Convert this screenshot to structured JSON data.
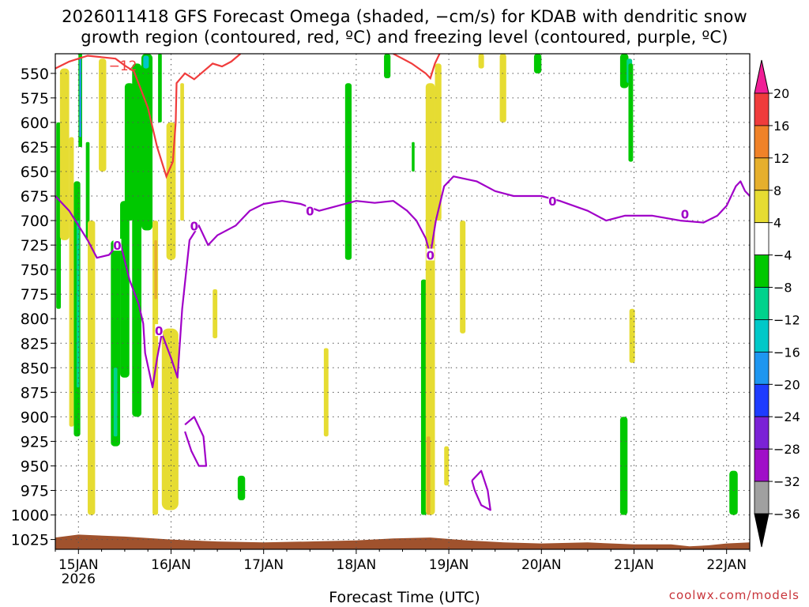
{
  "title_line1": "2026011418 GFS Forecast Omega (shaded, −cm/s) for KDAB with dendritic snow",
  "title_line2": "growth region (contoured, red, ºC) and freezing level (contoured, purple, ºC)",
  "credit": "coolwx.com/models",
  "chart_data": {
    "type": "heatmap",
    "xlabel": "Forecast Time (UTC)",
    "x_ticks": [
      "15JAN",
      "16JAN",
      "17JAN",
      "18JAN",
      "19JAN",
      "20JAN",
      "21JAN",
      "22JAN"
    ],
    "x_year_label": "2026",
    "x_range_days": [
      14.75,
      22.25
    ],
    "y_ticks": [
      550,
      575,
      600,
      625,
      650,
      675,
      700,
      725,
      750,
      775,
      800,
      825,
      850,
      875,
      900,
      925,
      950,
      975,
      1000,
      1025
    ],
    "ylim": [
      530,
      1035
    ],
    "grid": true,
    "colorbar": {
      "labels": [
        "20",
        "16",
        "12",
        "8",
        "4",
        "−4",
        "−8",
        "−12",
        "−16",
        "−20",
        "−24",
        "−28",
        "−32",
        "−36"
      ],
      "bands": [
        {
          "lo": 16,
          "hi": 20,
          "color": "#f03c3c"
        },
        {
          "lo": 12,
          "hi": 16,
          "color": "#f08228"
        },
        {
          "lo": 8,
          "hi": 12,
          "color": "#e6af2d"
        },
        {
          "lo": 4,
          "hi": 8,
          "color": "#e6dc32"
        },
        {
          "lo": -4,
          "hi": 4,
          "color": "#ffffff"
        },
        {
          "lo": -8,
          "hi": -4,
          "color": "#00c800"
        },
        {
          "lo": -12,
          "hi": -8,
          "color": "#00d28c"
        },
        {
          "lo": -16,
          "hi": -12,
          "color": "#00c8c8"
        },
        {
          "lo": -20,
          "hi": -16,
          "color": "#1e96f0"
        },
        {
          "lo": -24,
          "hi": -20,
          "color": "#1e3cff"
        },
        {
          "lo": -28,
          "hi": -24,
          "color": "#7b22d6"
        },
        {
          "lo": -32,
          "hi": -28,
          "color": "#a00fc8"
        },
        {
          "lo": -36,
          "hi": -32,
          "color": "#a0a0a0"
        }
      ],
      "top_arrow_color": "#f01e96",
      "bottom_arrow_color": "#000000"
    },
    "freezing_level": {
      "name": "0",
      "color": "#a000c8",
      "points": [
        [
          14.75,
          675
        ],
        [
          14.9,
          690
        ],
        [
          15.0,
          705
        ],
        [
          15.1,
          720
        ],
        [
          15.2,
          738
        ],
        [
          15.33,
          735
        ],
        [
          15.45,
          722
        ],
        [
          15.55,
          760
        ],
        [
          15.65,
          785
        ],
        [
          15.7,
          805
        ],
        [
          15.72,
          835
        ],
        [
          15.8,
          870
        ],
        [
          15.85,
          840
        ],
        [
          15.9,
          815
        ],
        [
          16.0,
          840
        ],
        [
          16.07,
          860
        ],
        [
          16.12,
          790
        ],
        [
          16.2,
          720
        ],
        [
          16.3,
          705
        ],
        [
          16.4,
          725
        ],
        [
          16.5,
          715
        ],
        [
          16.7,
          705
        ],
        [
          16.85,
          690
        ],
        [
          17.0,
          683
        ],
        [
          17.2,
          680
        ],
        [
          17.4,
          683
        ],
        [
          17.6,
          690
        ],
        [
          17.8,
          685
        ],
        [
          18.0,
          680
        ],
        [
          18.2,
          682
        ],
        [
          18.4,
          680
        ],
        [
          18.55,
          690
        ],
        [
          18.65,
          700
        ],
        [
          18.75,
          718
        ],
        [
          18.8,
          735
        ],
        [
          18.86,
          700
        ],
        [
          18.95,
          665
        ],
        [
          19.05,
          655
        ],
        [
          19.3,
          660
        ],
        [
          19.5,
          670
        ],
        [
          19.7,
          675
        ],
        [
          20.0,
          675
        ],
        [
          20.2,
          680
        ],
        [
          20.5,
          690
        ],
        [
          20.7,
          700
        ],
        [
          20.9,
          695
        ],
        [
          21.2,
          695
        ],
        [
          21.5,
          700
        ],
        [
          21.75,
          702
        ],
        [
          21.9,
          695
        ],
        [
          22.0,
          685
        ],
        [
          22.1,
          665
        ],
        [
          22.15,
          660
        ],
        [
          22.2,
          670
        ],
        [
          22.25,
          675
        ]
      ],
      "labels": [
        {
          "text": "0",
          "x": 15.42,
          "y": 725
        },
        {
          "text": "0",
          "x": 15.87,
          "y": 812
        },
        {
          "text": "0",
          "x": 16.25,
          "y": 705
        },
        {
          "text": "0",
          "x": 17.5,
          "y": 690
        },
        {
          "text": "0",
          "x": 18.8,
          "y": 735
        },
        {
          "text": "0",
          "x": 20.12,
          "y": 680
        },
        {
          "text": "0",
          "x": 21.55,
          "y": 693
        }
      ],
      "loops": [
        [
          [
            16.15,
            908
          ],
          [
            16.25,
            900
          ],
          [
            16.35,
            920
          ],
          [
            16.38,
            950
          ],
          [
            16.3,
            950
          ],
          [
            16.22,
            935
          ],
          [
            16.15,
            915
          ]
        ],
        [
          [
            19.25,
            965
          ],
          [
            19.35,
            955
          ],
          [
            19.42,
            975
          ],
          [
            19.45,
            995
          ],
          [
            19.35,
            990
          ],
          [
            19.28,
            975
          ],
          [
            19.25,
            965
          ]
        ]
      ]
    },
    "dgz_contour": {
      "name": "−12",
      "color": "#f03c3c",
      "label": {
        "text": "−12",
        "x": 15.48,
        "y": 542
      },
      "lines": [
        [
          [
            14.75,
            545
          ],
          [
            14.9,
            538
          ],
          [
            15.1,
            532
          ],
          [
            15.4,
            535
          ],
          [
            15.5,
            542
          ],
          [
            15.6,
            548
          ],
          [
            15.75,
            585
          ],
          [
            15.85,
            625
          ],
          [
            15.95,
            655
          ],
          [
            16.02,
            640
          ],
          [
            16.05,
            600
          ],
          [
            16.06,
            560
          ],
          [
            16.15,
            550
          ],
          [
            16.25,
            556
          ],
          [
            16.35,
            548
          ],
          [
            16.45,
            540
          ],
          [
            16.55,
            543
          ],
          [
            16.65,
            538
          ],
          [
            16.75,
            530
          ]
        ],
        [
          [
            18.4,
            530
          ],
          [
            18.6,
            540
          ],
          [
            18.75,
            550
          ],
          [
            18.8,
            555
          ],
          [
            18.85,
            540
          ],
          [
            18.9,
            530
          ]
        ]
      ]
    },
    "omega_patches": [
      {
        "x0": 14.76,
        "x1": 14.81,
        "y0": 600,
        "y1": 790,
        "color": "#00c800"
      },
      {
        "x0": 14.8,
        "x1": 14.9,
        "y0": 545,
        "y1": 720,
        "color": "#e6dc32"
      },
      {
        "x0": 14.9,
        "x1": 14.95,
        "y0": 615,
        "y1": 910,
        "color": "#e6dc32"
      },
      {
        "x0": 14.95,
        "x1": 15.02,
        "y0": 660,
        "y1": 920,
        "color": "#00c800"
      },
      {
        "x0": 14.98,
        "x1": 15.01,
        "y0": 700,
        "y1": 870,
        "color": "#00d28c"
      },
      {
        "x0": 15.0,
        "x1": 15.04,
        "y0": 530,
        "y1": 625,
        "color": "#00c800"
      },
      {
        "x0": 15.01,
        "x1": 15.03,
        "y0": 535,
        "y1": 615,
        "color": "#1e96f0"
      },
      {
        "x0": 15.08,
        "x1": 15.12,
        "y0": 620,
        "y1": 720,
        "color": "#00c800"
      },
      {
        "x0": 15.1,
        "x1": 15.18,
        "y0": 700,
        "y1": 1000,
        "color": "#e6dc32"
      },
      {
        "x0": 15.22,
        "x1": 15.3,
        "y0": 535,
        "y1": 650,
        "color": "#e6dc32"
      },
      {
        "x0": 15.35,
        "x1": 15.45,
        "y0": 720,
        "y1": 930,
        "color": "#00c800"
      },
      {
        "x0": 15.38,
        "x1": 15.42,
        "y0": 850,
        "y1": 920,
        "color": "#00d28c"
      },
      {
        "x0": 15.45,
        "x1": 15.55,
        "y0": 680,
        "y1": 860,
        "color": "#00c800"
      },
      {
        "x0": 15.5,
        "x1": 15.6,
        "y0": 560,
        "y1": 700,
        "color": "#00c800"
      },
      {
        "x0": 15.58,
        "x1": 15.68,
        "y0": 540,
        "y1": 900,
        "color": "#00c800"
      },
      {
        "x0": 15.68,
        "x1": 15.8,
        "y0": 530,
        "y1": 710,
        "color": "#00c800"
      },
      {
        "x0": 15.7,
        "x1": 15.76,
        "y0": 532,
        "y1": 545,
        "color": "#00c8c8"
      },
      {
        "x0": 15.8,
        "x1": 15.86,
        "y0": 700,
        "y1": 1000,
        "color": "#e6dc32"
      },
      {
        "x0": 15.82,
        "x1": 15.85,
        "y0": 720,
        "y1": 780,
        "color": "#e6af2d"
      },
      {
        "x0": 15.86,
        "x1": 15.9,
        "y0": 530,
        "y1": 600,
        "color": "#00c800"
      },
      {
        "x0": 15.9,
        "x1": 16.08,
        "y0": 810,
        "y1": 995,
        "color": "#e6dc32"
      },
      {
        "x0": 15.95,
        "x1": 16.05,
        "y0": 600,
        "y1": 740,
        "color": "#e6dc32"
      },
      {
        "x0": 16.1,
        "x1": 16.14,
        "y0": 560,
        "y1": 700,
        "color": "#e6dc32"
      },
      {
        "x0": 16.45,
        "x1": 16.5,
        "y0": 770,
        "y1": 820,
        "color": "#e6dc32"
      },
      {
        "x0": 16.72,
        "x1": 16.8,
        "y0": 960,
        "y1": 985,
        "color": "#00c800"
      },
      {
        "x0": 17.65,
        "x1": 17.7,
        "y0": 830,
        "y1": 920,
        "color": "#e6dc32"
      },
      {
        "x0": 17.88,
        "x1": 17.95,
        "y0": 560,
        "y1": 740,
        "color": "#00c800"
      },
      {
        "x0": 18.3,
        "x1": 18.37,
        "y0": 530,
        "y1": 555,
        "color": "#00c800"
      },
      {
        "x0": 18.6,
        "x1": 18.63,
        "y0": 620,
        "y1": 650,
        "color": "#00c800"
      },
      {
        "x0": 18.7,
        "x1": 18.76,
        "y0": 760,
        "y1": 1000,
        "color": "#00c800"
      },
      {
        "x0": 18.75,
        "x1": 18.85,
        "y0": 560,
        "y1": 1000,
        "color": "#e6dc32"
      },
      {
        "x0": 18.76,
        "x1": 18.8,
        "y0": 920,
        "y1": 1000,
        "color": "#e6af2d"
      },
      {
        "x0": 18.85,
        "x1": 18.92,
        "y0": 540,
        "y1": 700,
        "color": "#e6dc32"
      },
      {
        "x0": 18.95,
        "x1": 19.0,
        "y0": 930,
        "y1": 970,
        "color": "#e6dc32"
      },
      {
        "x0": 19.12,
        "x1": 19.18,
        "y0": 700,
        "y1": 815,
        "color": "#e6dc32"
      },
      {
        "x0": 19.32,
        "x1": 19.38,
        "y0": 530,
        "y1": 545,
        "color": "#e6dc32"
      },
      {
        "x0": 19.55,
        "x1": 19.62,
        "y0": 530,
        "y1": 600,
        "color": "#e6dc32"
      },
      {
        "x0": 19.92,
        "x1": 20.0,
        "y0": 530,
        "y1": 550,
        "color": "#00c800"
      },
      {
        "x0": 20.85,
        "x1": 20.94,
        "y0": 530,
        "y1": 565,
        "color": "#00c800"
      },
      {
        "x0": 20.92,
        "x1": 20.98,
        "y0": 535,
        "y1": 560,
        "color": "#00d28c"
      },
      {
        "x0": 20.94,
        "x1": 20.99,
        "y0": 540,
        "y1": 640,
        "color": "#00c800"
      },
      {
        "x0": 20.95,
        "x1": 21.01,
        "y0": 790,
        "y1": 845,
        "color": "#e6dc32"
      },
      {
        "x0": 20.85,
        "x1": 20.93,
        "y0": 900,
        "y1": 1000,
        "color": "#00c800"
      },
      {
        "x0": 22.03,
        "x1": 22.12,
        "y0": 955,
        "y1": 1000,
        "color": "#00c800"
      }
    ],
    "terrain_color": "#a0522d"
  }
}
